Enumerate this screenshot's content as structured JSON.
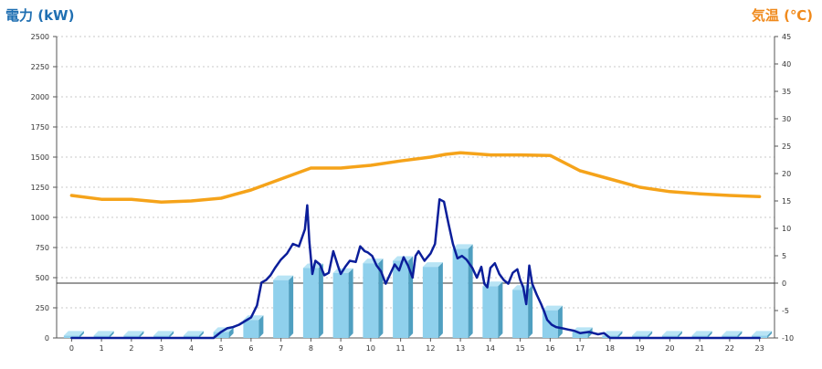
{
  "chart_data": {
    "type": "bar+line",
    "ylabel_left": "電力 (kW)",
    "ylabel_right": "気温 (℃)",
    "x_ticks": [
      "0",
      "1",
      "2",
      "3",
      "4",
      "5",
      "6",
      "7",
      "8",
      "9",
      "10",
      "11",
      "12",
      "13",
      "14",
      "15",
      "16",
      "17",
      "18",
      "19",
      "20",
      "21",
      "22",
      "23"
    ],
    "y_left_ticks": [
      "0",
      "250",
      "500",
      "750",
      "1000",
      "1250",
      "1500",
      "1750",
      "2000",
      "2250",
      "2500"
    ],
    "y_right_ticks": [
      "-10",
      "-5",
      "0",
      "5",
      "10",
      "15",
      "20",
      "25",
      "30",
      "35",
      "40",
      "45"
    ],
    "ylim_left": [
      0,
      2500
    ],
    "ylim_right": [
      -10,
      45
    ],
    "grid": true,
    "reference_line_temp": 0,
    "bars": {
      "name": "hourly power",
      "x": [
        0,
        1,
        2,
        3,
        4,
        5,
        6,
        7,
        8,
        9,
        10,
        11,
        12,
        13,
        14,
        15,
        16,
        17,
        18,
        19,
        20,
        21,
        22,
        23
      ],
      "values": [
        20,
        20,
        20,
        20,
        20,
        50,
        150,
        480,
        580,
        540,
        620,
        640,
        590,
        740,
        430,
        400,
        230,
        50,
        20,
        20,
        20,
        20,
        20,
        20
      ]
    },
    "power_line": {
      "name": "power demand",
      "x": [
        0,
        1,
        2,
        3,
        4,
        4.75,
        5,
        5.2,
        5.4,
        5.6,
        5.8,
        6,
        6.2,
        6.35,
        6.5,
        6.65,
        6.8,
        7,
        7.2,
        7.4,
        7.6,
        7.8,
        7.88,
        7.95,
        8.05,
        8.15,
        8.3,
        8.45,
        8.6,
        8.75,
        8.9,
        9,
        9.15,
        9.3,
        9.5,
        9.65,
        9.8,
        9.9,
        10.05,
        10.2,
        10.35,
        10.5,
        10.65,
        10.8,
        10.95,
        11.1,
        11.25,
        11.4,
        11.5,
        11.6,
        11.8,
        12,
        12.15,
        12.3,
        12.45,
        12.6,
        12.75,
        12.9,
        13.05,
        13.2,
        13.4,
        13.55,
        13.7,
        13.8,
        13.9,
        14,
        14.15,
        14.3,
        14.45,
        14.6,
        14.75,
        14.9,
        15,
        15.1,
        15.2,
        15.3,
        15.4,
        15.55,
        15.7,
        15.8,
        15.9,
        16.05,
        16.2,
        16.4,
        16.6,
        16.8,
        17,
        17.3,
        17.6,
        17.8,
        18,
        18.5,
        19,
        20,
        21,
        22,
        23
      ],
      "values": [
        0,
        0,
        0,
        0,
        0,
        0,
        50,
        80,
        90,
        110,
        140,
        170,
        270,
        460,
        480,
        520,
        580,
        650,
        700,
        780,
        760,
        900,
        1100,
        800,
        530,
        640,
        610,
        520,
        540,
        720,
        600,
        530,
        590,
        640,
        630,
        760,
        720,
        710,
        680,
        600,
        550,
        450,
        530,
        610,
        560,
        670,
        600,
        500,
        680,
        720,
        640,
        700,
        780,
        1150,
        1130,
        950,
        780,
        660,
        680,
        650,
        580,
        500,
        590,
        450,
        420,
        580,
        620,
        530,
        480,
        450,
        540,
        570,
        480,
        420,
        280,
        600,
        450,
        360,
        280,
        220,
        150,
        110,
        90,
        80,
        70,
        60,
        40,
        50,
        30,
        40,
        0,
        0,
        0,
        0,
        0,
        0,
        0
      ]
    },
    "temp_line": {
      "name": "temperature",
      "x": [
        0,
        1,
        2,
        3,
        4,
        5,
        6,
        7,
        8,
        9,
        10,
        11,
        12,
        12.5,
        13,
        13.5,
        14,
        15,
        16,
        17,
        18,
        19,
        20,
        21,
        22,
        23
      ],
      "values": [
        16,
        15.3,
        15.3,
        14.8,
        15,
        15.5,
        17,
        19,
        21,
        21,
        21.5,
        22.3,
        23,
        23.5,
        23.8,
        23.6,
        23.4,
        23.4,
        23.3,
        20.5,
        19,
        17.5,
        16.7,
        16.3,
        16,
        15.8
      ]
    }
  }
}
